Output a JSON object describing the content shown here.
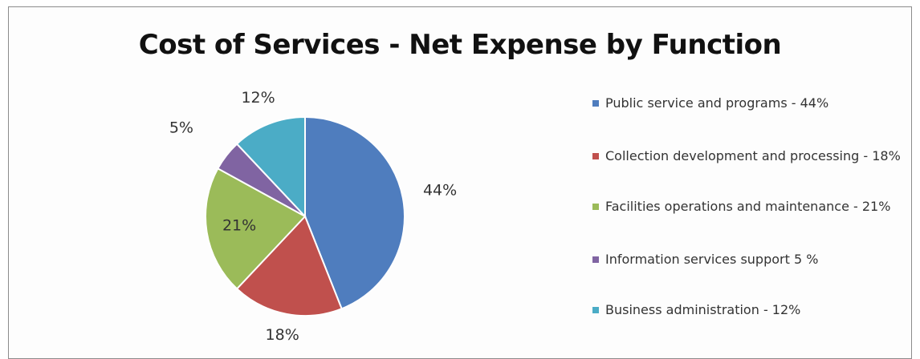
{
  "chart_data": {
    "type": "pie",
    "title": "Cost of Services - Net Expense by Function",
    "slices": [
      {
        "label": "Public service and programs - 44%",
        "value": 44,
        "data_label": "44%",
        "color": "#4f7dbe"
      },
      {
        "label": "Collection development and processing - 18%",
        "value": 18,
        "data_label": "18%",
        "color": "#c0504d"
      },
      {
        "label": "Facilities operations and maintenance - 21%",
        "value": 21,
        "data_label": "21%",
        "color": "#9bbb59"
      },
      {
        "label": "Information services support 5 %",
        "value": 5,
        "data_label": "5%",
        "color": "#8064a2"
      },
      {
        "label": "Business administration - 12%",
        "value": 12,
        "data_label": "12%",
        "color": "#4bacc6"
      }
    ],
    "legend_position": "right"
  },
  "legend": {
    "items": [
      {
        "label": "Public service and programs  - 44%",
        "icon": "square-swatch",
        "color": "#4f7dbe"
      },
      {
        "label": "Collection development and processing - 18%",
        "icon": "square-swatch",
        "color": "#c0504d"
      },
      {
        "label": "Facilities operations and maintenance - 21%",
        "icon": "square-swatch",
        "color": "#9bbb59"
      },
      {
        "label": "Information services support 5 %",
        "icon": "square-swatch",
        "color": "#8064a2"
      },
      {
        "label": "Business administration - 12%",
        "icon": "square-swatch",
        "color": "#4bacc6"
      }
    ]
  }
}
